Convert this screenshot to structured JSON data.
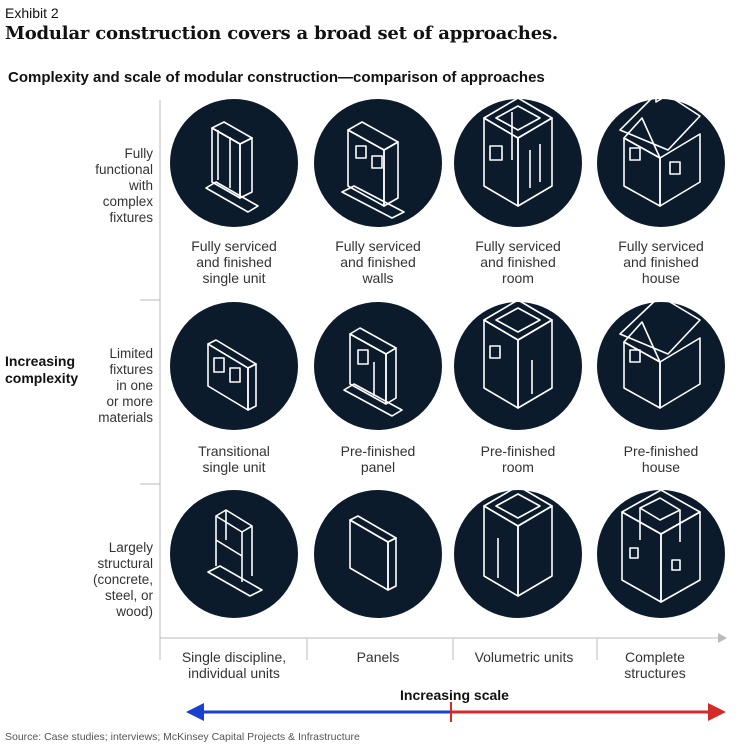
{
  "exhibit": "Exhibit 2",
  "headline": "Modular construction covers a broad set of approaches.",
  "subtitle": "Complexity and scale of modular construction—comparison of approaches",
  "y_axis": {
    "label_line1": "Increasing",
    "label_line2": "complexity",
    "rows": [
      {
        "label": [
          "Fully",
          "functional",
          "with",
          "complex",
          "fixtures"
        ]
      },
      {
        "label": [
          "Limited",
          "fixtures",
          "in one",
          "or more",
          "materials"
        ]
      },
      {
        "label": [
          "Largely",
          "structural",
          "(concrete,",
          "steel, or",
          "wood)"
        ]
      }
    ]
  },
  "x_axis": {
    "label": "Increasing scale",
    "columns": [
      {
        "label": [
          "Single discipline,",
          "individual units"
        ]
      },
      {
        "label": [
          "Panels"
        ]
      },
      {
        "label": [
          "Volumetric units"
        ]
      },
      {
        "label": [
          "Complete",
          "structures"
        ]
      }
    ]
  },
  "cells": [
    [
      {
        "caption": [
          "Fully serviced",
          "and finished",
          "single unit"
        ]
      },
      {
        "caption": [
          "Fully serviced",
          "and finished",
          "walls"
        ]
      },
      {
        "caption": [
          "Fully serviced",
          "and finished",
          "room"
        ]
      },
      {
        "caption": [
          "Fully serviced",
          "and finished",
          "house"
        ]
      }
    ],
    [
      {
        "caption": [
          "Transitional",
          "single unit"
        ]
      },
      {
        "caption": [
          "Pre-finished",
          "panel"
        ]
      },
      {
        "caption": [
          "Pre-finished",
          "room"
        ]
      },
      {
        "caption": [
          "Pre-finished",
          "house"
        ]
      }
    ],
    [
      {
        "caption": []
      },
      {
        "caption": []
      },
      {
        "caption": []
      },
      {
        "caption": []
      }
    ]
  ],
  "source": "Source: Case studies; interviews; McKinsey Capital Projects & Infrastructure",
  "colors": {
    "circle": "#0b1b2b",
    "arrow_left": "#1a3fd1",
    "arrow_right": "#d42a2a",
    "axis": "#bbbbbb"
  }
}
